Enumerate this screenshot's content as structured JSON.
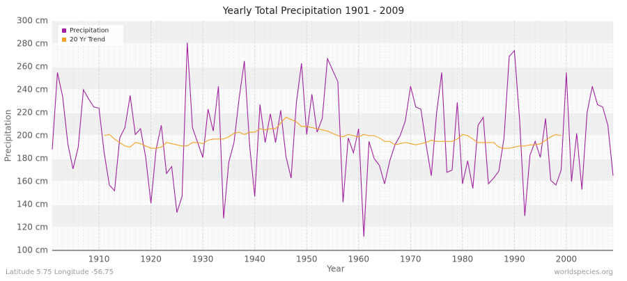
{
  "chart_data": {
    "type": "line",
    "title": "Yearly Total Precipitation 1901 - 2009",
    "x_label": "Year",
    "y_label": "Precipitation",
    "footer_left": "Latitude 5.75 Longitude -56.75",
    "footer_right": "worldspecies.org",
    "x": [
      1901,
      1902,
      1903,
      1904,
      1905,
      1906,
      1907,
      1908,
      1909,
      1910,
      1911,
      1912,
      1913,
      1914,
      1915,
      1916,
      1917,
      1918,
      1919,
      1920,
      1921,
      1922,
      1923,
      1924,
      1925,
      1926,
      1927,
      1928,
      1929,
      1930,
      1931,
      1932,
      1933,
      1934,
      1935,
      1936,
      1937,
      1938,
      1939,
      1940,
      1941,
      1942,
      1943,
      1944,
      1945,
      1946,
      1947,
      1948,
      1949,
      1950,
      1951,
      1952,
      1953,
      1954,
      1955,
      1956,
      1957,
      1958,
      1959,
      1960,
      1961,
      1962,
      1963,
      1964,
      1965,
      1966,
      1967,
      1968,
      1969,
      1970,
      1971,
      1972,
      1973,
      1974,
      1975,
      1976,
      1977,
      1978,
      1979,
      1980,
      1981,
      1982,
      1983,
      1984,
      1985,
      1986,
      1987,
      1988,
      1989,
      1990,
      1991,
      1992,
      1993,
      1994,
      1995,
      1996,
      1997,
      1998,
      1999,
      2000,
      2001,
      2002,
      2003,
      2004,
      2005,
      2006,
      2007,
      2008,
      2009
    ],
    "series": [
      {
        "name": "Precipitation",
        "color": "#a020a0",
        "values": [
          188,
          255,
          234,
          193,
          171,
          190,
          240,
          232,
          225,
          224,
          185,
          157,
          152,
          198,
          207,
          235,
          201,
          206,
          181,
          141,
          188,
          209,
          167,
          173,
          133,
          147,
          281,
          207,
          194,
          181,
          223,
          204,
          243,
          128,
          177,
          194,
          233,
          265,
          192,
          147,
          227,
          194,
          219,
          194,
          222,
          182,
          163,
          228,
          263,
          201,
          236,
          203,
          215,
          267,
          257,
          247,
          142,
          198,
          185,
          206,
          112,
          195,
          180,
          174,
          158,
          178,
          192,
          200,
          213,
          243,
          225,
          223,
          192,
          165,
          219,
          255,
          168,
          170,
          229,
          158,
          178,
          154,
          209,
          216,
          158,
          163,
          169,
          198,
          269,
          274,
          214,
          130,
          183,
          195,
          181,
          215,
          161,
          157,
          170,
          255,
          160,
          202,
          153,
          220,
          243,
          227,
          225,
          209,
          165
        ]
      },
      {
        "name": "20 Yr Trend",
        "color": "#f5a020",
        "values": [
          null,
          null,
          null,
          null,
          null,
          null,
          null,
          null,
          null,
          null,
          200,
          201,
          197,
          194,
          191,
          190,
          194,
          193,
          191,
          189,
          189,
          190,
          194,
          193,
          192,
          191,
          191,
          194,
          194,
          193,
          196,
          197,
          197,
          197,
          199,
          202,
          203,
          201,
          203,
          203,
          206,
          205,
          206,
          206,
          211,
          216,
          214,
          212,
          208,
          208,
          207,
          206,
          205,
          204,
          202,
          200,
          199,
          201,
          200,
          199,
          201,
          200,
          200,
          198,
          195,
          195,
          192,
          193,
          194,
          193,
          192,
          193,
          194,
          196,
          195,
          195,
          195,
          195,
          197,
          201,
          200,
          197,
          194,
          194,
          194,
          194,
          190,
          189,
          189,
          190,
          191,
          191,
          192,
          192,
          193,
          196,
          199,
          201,
          200,
          null,
          null,
          null,
          null,
          null,
          null,
          null,
          null,
          null,
          null
        ]
      }
    ],
    "xlim": [
      1901,
      2009
    ],
    "xticks": [
      1910,
      1920,
      1930,
      1940,
      1950,
      1960,
      1970,
      1980,
      1990,
      2000
    ],
    "ylim": [
      100,
      300
    ],
    "yticks": [
      {
        "value": 100,
        "label": "100 cm"
      },
      {
        "value": 120,
        "label": "120 cm"
      },
      {
        "value": 140,
        "label": "140 cm"
      },
      {
        "value": 160,
        "label": "160 cm"
      },
      {
        "value": 180,
        "label": "180 cm"
      },
      {
        "value": 200,
        "label": "200 cm"
      },
      {
        "value": 220,
        "label": "220 cm"
      },
      {
        "value": 240,
        "label": "240 cm"
      },
      {
        "value": 260,
        "label": "260 cm"
      },
      {
        "value": 280,
        "label": "280 cm"
      },
      {
        "value": 300,
        "label": "300 cm"
      }
    ],
    "grid": true,
    "legend": "top-left"
  }
}
